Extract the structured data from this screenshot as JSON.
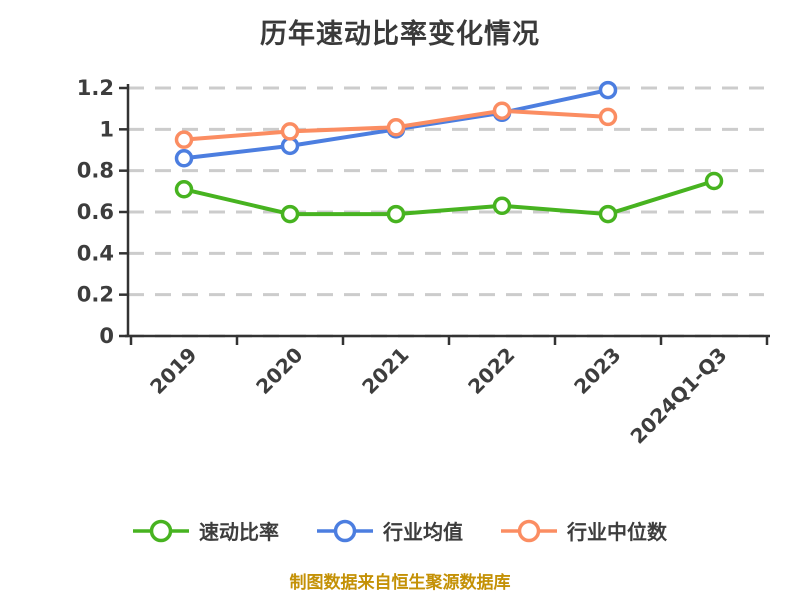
{
  "title": "历年速动比率变化情况",
  "footer": {
    "text": "制图数据来自恒生聚源数据库",
    "color": "#C49106"
  },
  "colors": {
    "title_text": "#3A3A3A",
    "axis": "#333333",
    "tick_text": "#3D3D3D",
    "gridline": "#CCCCCC",
    "background": "#FFFFFF",
    "quick_ratio": "#47B320",
    "industry_average": "#4C7EE0",
    "industry_median": "#FB8D62"
  },
  "chart_data": {
    "type": "line",
    "title": "历年速动比率变化情况",
    "xlabel": "",
    "ylabel": "",
    "categories": [
      "2019",
      "2020",
      "2021",
      "2022",
      "2023",
      "2024Q1-Q3"
    ],
    "series": [
      {
        "name": "速动比率",
        "key": "quick-ratio",
        "color": "#47B320",
        "values": [
          0.71,
          0.59,
          0.59,
          0.63,
          0.59,
          0.75
        ]
      },
      {
        "name": "行业均值",
        "key": "industry-average",
        "color": "#4C7EE0",
        "values": [
          0.86,
          0.92,
          1.0,
          1.08,
          1.19,
          null
        ]
      },
      {
        "name": "行业中位数",
        "key": "industry-median",
        "color": "#FB8D62",
        "values": [
          0.95,
          0.99,
          1.01,
          1.09,
          1.06,
          null
        ]
      }
    ],
    "y_ticks": [
      "0",
      "0.2",
      "0.4",
      "0.6",
      "0.8",
      "1",
      "1.2"
    ],
    "y_tick_values": [
      0,
      0.2,
      0.4,
      0.6,
      0.8,
      1.0,
      1.2
    ],
    "ylim": [
      0,
      1.2
    ],
    "grid": "dashed horizontal",
    "x_tick_rotation": 45,
    "legend_position": "bottom",
    "marker": "circle white fill with colored ring"
  }
}
